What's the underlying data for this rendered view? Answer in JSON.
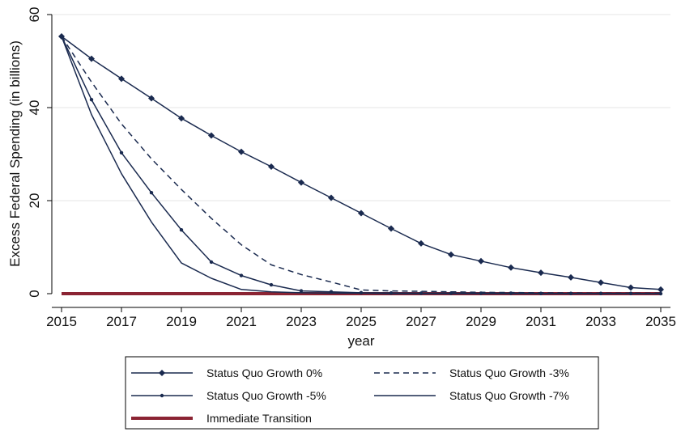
{
  "chart_data": {
    "type": "line",
    "xlabel": "year",
    "ylabel": "Excess Federal Spending (in billions)",
    "xlim": [
      2015,
      2035
    ],
    "ylim": [
      0,
      60
    ],
    "xticks": [
      2015,
      2017,
      2019,
      2021,
      2023,
      2025,
      2027,
      2029,
      2031,
      2033,
      2035
    ],
    "yticks": [
      0,
      20,
      40,
      60
    ],
    "grid": "horizontal",
    "legend_position": "bottom",
    "x": [
      2015,
      2016,
      2017,
      2018,
      2019,
      2020,
      2021,
      2022,
      2023,
      2024,
      2025,
      2026,
      2027,
      2028,
      2029,
      2030,
      2031,
      2032,
      2033,
      2034,
      2035
    ],
    "series": [
      {
        "name": "Status Quo Growth 0%",
        "color": "#1a2a4f",
        "style": "solid-diamond",
        "values": [
          55.3,
          50.5,
          46.2,
          42.0,
          37.7,
          34.0,
          30.5,
          27.3,
          23.9,
          20.6,
          17.3,
          14.0,
          10.8,
          8.4,
          7.0,
          5.6,
          4.5,
          3.5,
          2.4,
          1.3,
          0.9
        ]
      },
      {
        "name": "Status Quo Growth -3%",
        "color": "#1a2a4f",
        "style": "dashed",
        "values": [
          55.3,
          45.5,
          36.5,
          29.0,
          22.4,
          16.2,
          10.5,
          6.2,
          4.1,
          2.5,
          0.8,
          0.6,
          0.5,
          0.4,
          0.3,
          0.25,
          0.2,
          0.15,
          0.1,
          0.1,
          0.1
        ]
      },
      {
        "name": "Status Quo Growth -5%",
        "color": "#1a2a4f",
        "style": "solid-dot",
        "values": [
          55.3,
          41.7,
          30.3,
          21.7,
          13.7,
          6.8,
          3.9,
          1.9,
          0.6,
          0.4,
          0.2,
          0.15,
          0.1,
          0.1,
          0.1,
          0.1,
          0.05,
          0.05,
          0.05,
          0.05,
          0.0
        ]
      },
      {
        "name": "Status Quo Growth -7%",
        "color": "#1a2a4f",
        "style": "solid",
        "values": [
          55.3,
          38.5,
          25.8,
          15.4,
          6.6,
          3.3,
          0.9,
          0.4,
          0.2,
          0.1,
          0.1,
          0.0,
          0.0,
          0.0,
          0.0,
          0.0,
          0.0,
          0.0,
          0.0,
          0.0,
          0.0
        ]
      },
      {
        "name": "Immediate Transition",
        "color": "#8b2433",
        "style": "thick",
        "values": [
          0,
          0,
          0,
          0,
          0,
          0,
          0,
          0,
          0,
          0,
          0,
          0,
          0,
          0,
          0,
          0,
          0,
          0,
          0,
          0,
          0
        ]
      }
    ]
  }
}
